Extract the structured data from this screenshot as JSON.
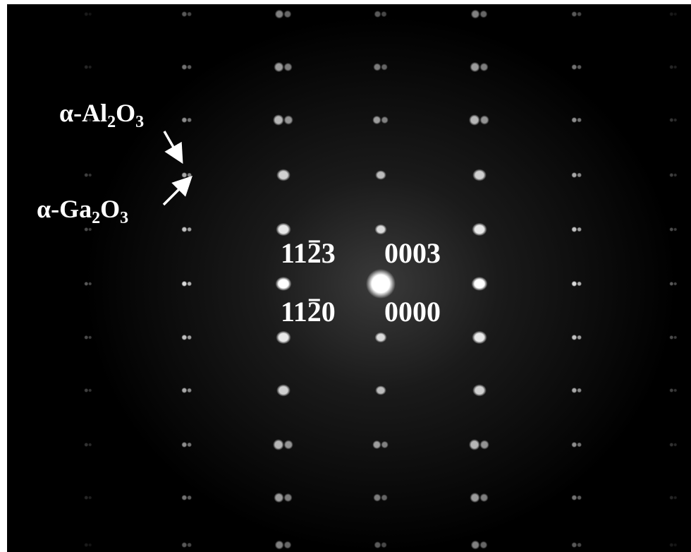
{
  "annotations": [
    {
      "parts": [
        "α-Al",
        "2",
        "O",
        "3"
      ]
    },
    {
      "parts": [
        "α-Ga",
        "2",
        "O",
        "3"
      ]
    }
  ],
  "indices": [
    {
      "parts": [
        "11",
        "2",
        "3"
      ]
    },
    {
      "parts": [
        "0003"
      ]
    },
    {
      "parts": [
        "11",
        "2",
        "0"
      ]
    },
    {
      "parts": [
        "0000"
      ]
    }
  ]
}
